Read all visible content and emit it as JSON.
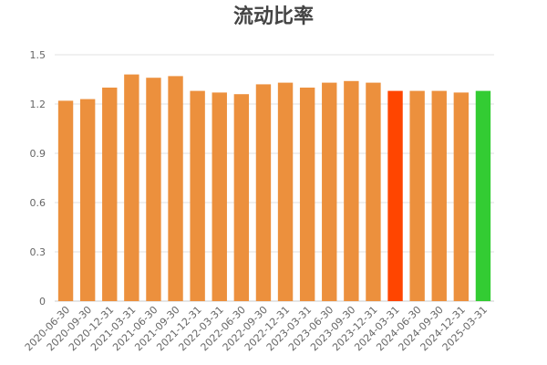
{
  "chart_data": {
    "type": "bar",
    "title": "流动比率",
    "xlabel": "",
    "ylabel": "",
    "ylim": [
      0,
      1.5
    ],
    "yticks": [
      "0",
      "0.3",
      "0.6",
      "0.9",
      "1.2",
      "1.5"
    ],
    "grid": true,
    "legend": "none",
    "colors": {
      "default": "#EC903D",
      "highlight_red": "#FF4500",
      "highlight_green": "#33CC33"
    },
    "categories": [
      "2020-06-30",
      "2020-09-30",
      "2020-12-31",
      "2021-03-31",
      "2021-06-30",
      "2021-09-30",
      "2021-12-31",
      "2022-03-31",
      "2022-06-30",
      "2022-09-30",
      "2022-12-31",
      "2023-03-31",
      "2023-06-30",
      "2023-09-30",
      "2023-12-31",
      "2024-03-31",
      "2024-06-30",
      "2024-09-30",
      "2024-12-31",
      "2025-03-31"
    ],
    "values": [
      1.22,
      1.23,
      1.3,
      1.38,
      1.36,
      1.37,
      1.28,
      1.27,
      1.26,
      1.32,
      1.33,
      1.3,
      1.33,
      1.34,
      1.33,
      1.28,
      1.28,
      1.28,
      1.27,
      1.28
    ],
    "bar_colors": [
      "default",
      "default",
      "default",
      "default",
      "default",
      "default",
      "default",
      "default",
      "default",
      "default",
      "default",
      "default",
      "default",
      "default",
      "default",
      "highlight_red",
      "default",
      "default",
      "default",
      "highlight_green"
    ]
  }
}
